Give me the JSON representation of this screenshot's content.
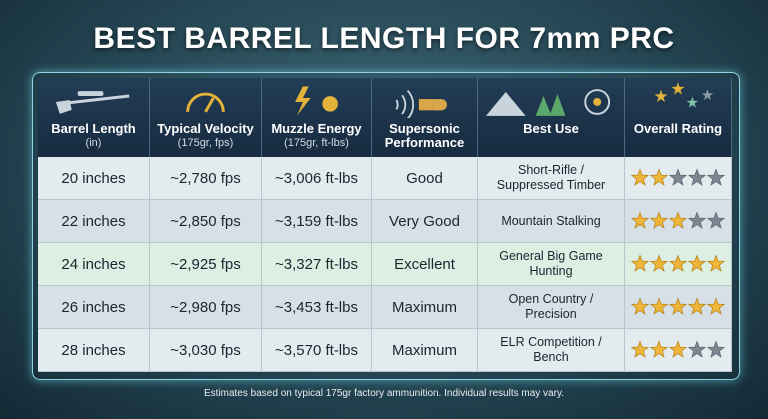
{
  "header": {
    "title": "BEST BARREL LENGTH FOR 7mm PRC"
  },
  "table": {
    "columns": [
      {
        "title": "Barrel Length",
        "sub": "(in)"
      },
      {
        "title": "Typical Velocity",
        "sub": "(175gr, fps)"
      },
      {
        "title": "Muzzle Energy",
        "sub": "(175gr, ft-lbs)"
      },
      {
        "title": "Supersonic Performance"
      },
      {
        "title": "Best Use"
      },
      {
        "title": "Overall Rating"
      }
    ],
    "rows": [
      {
        "cells": [
          "20 inches",
          "~2,780 fps",
          "~3,006 ft-lbs",
          "Good",
          "Short-Rifle / Suppressed Timber"
        ],
        "rating": 2
      },
      {
        "cells": [
          "22 inches",
          "~2,850 fps",
          "~3,159 ft-lbs",
          "Very Good",
          "Mountain Stalking"
        ],
        "rating": 3
      },
      {
        "cells": [
          "24 inches",
          "~2,925 fps",
          "~3,327 ft-lbs",
          "Excellent",
          "General Big Game Hunting"
        ],
        "rating": 5
      },
      {
        "cells": [
          "26 inches",
          "~2,980 fps",
          "~3,453 ft-lbs",
          "Maximum",
          "Open Country / Precision"
        ],
        "rating": 5
      },
      {
        "cells": [
          "28 inches",
          "~3,030 fps",
          "~3,570 ft-lbs",
          "Maximum",
          "ELR Competition / Bench"
        ],
        "rating": 3
      }
    ]
  },
  "footer": {
    "note": "Estimates based on typical 175gr factory ammunition. Individual results may vary."
  }
}
